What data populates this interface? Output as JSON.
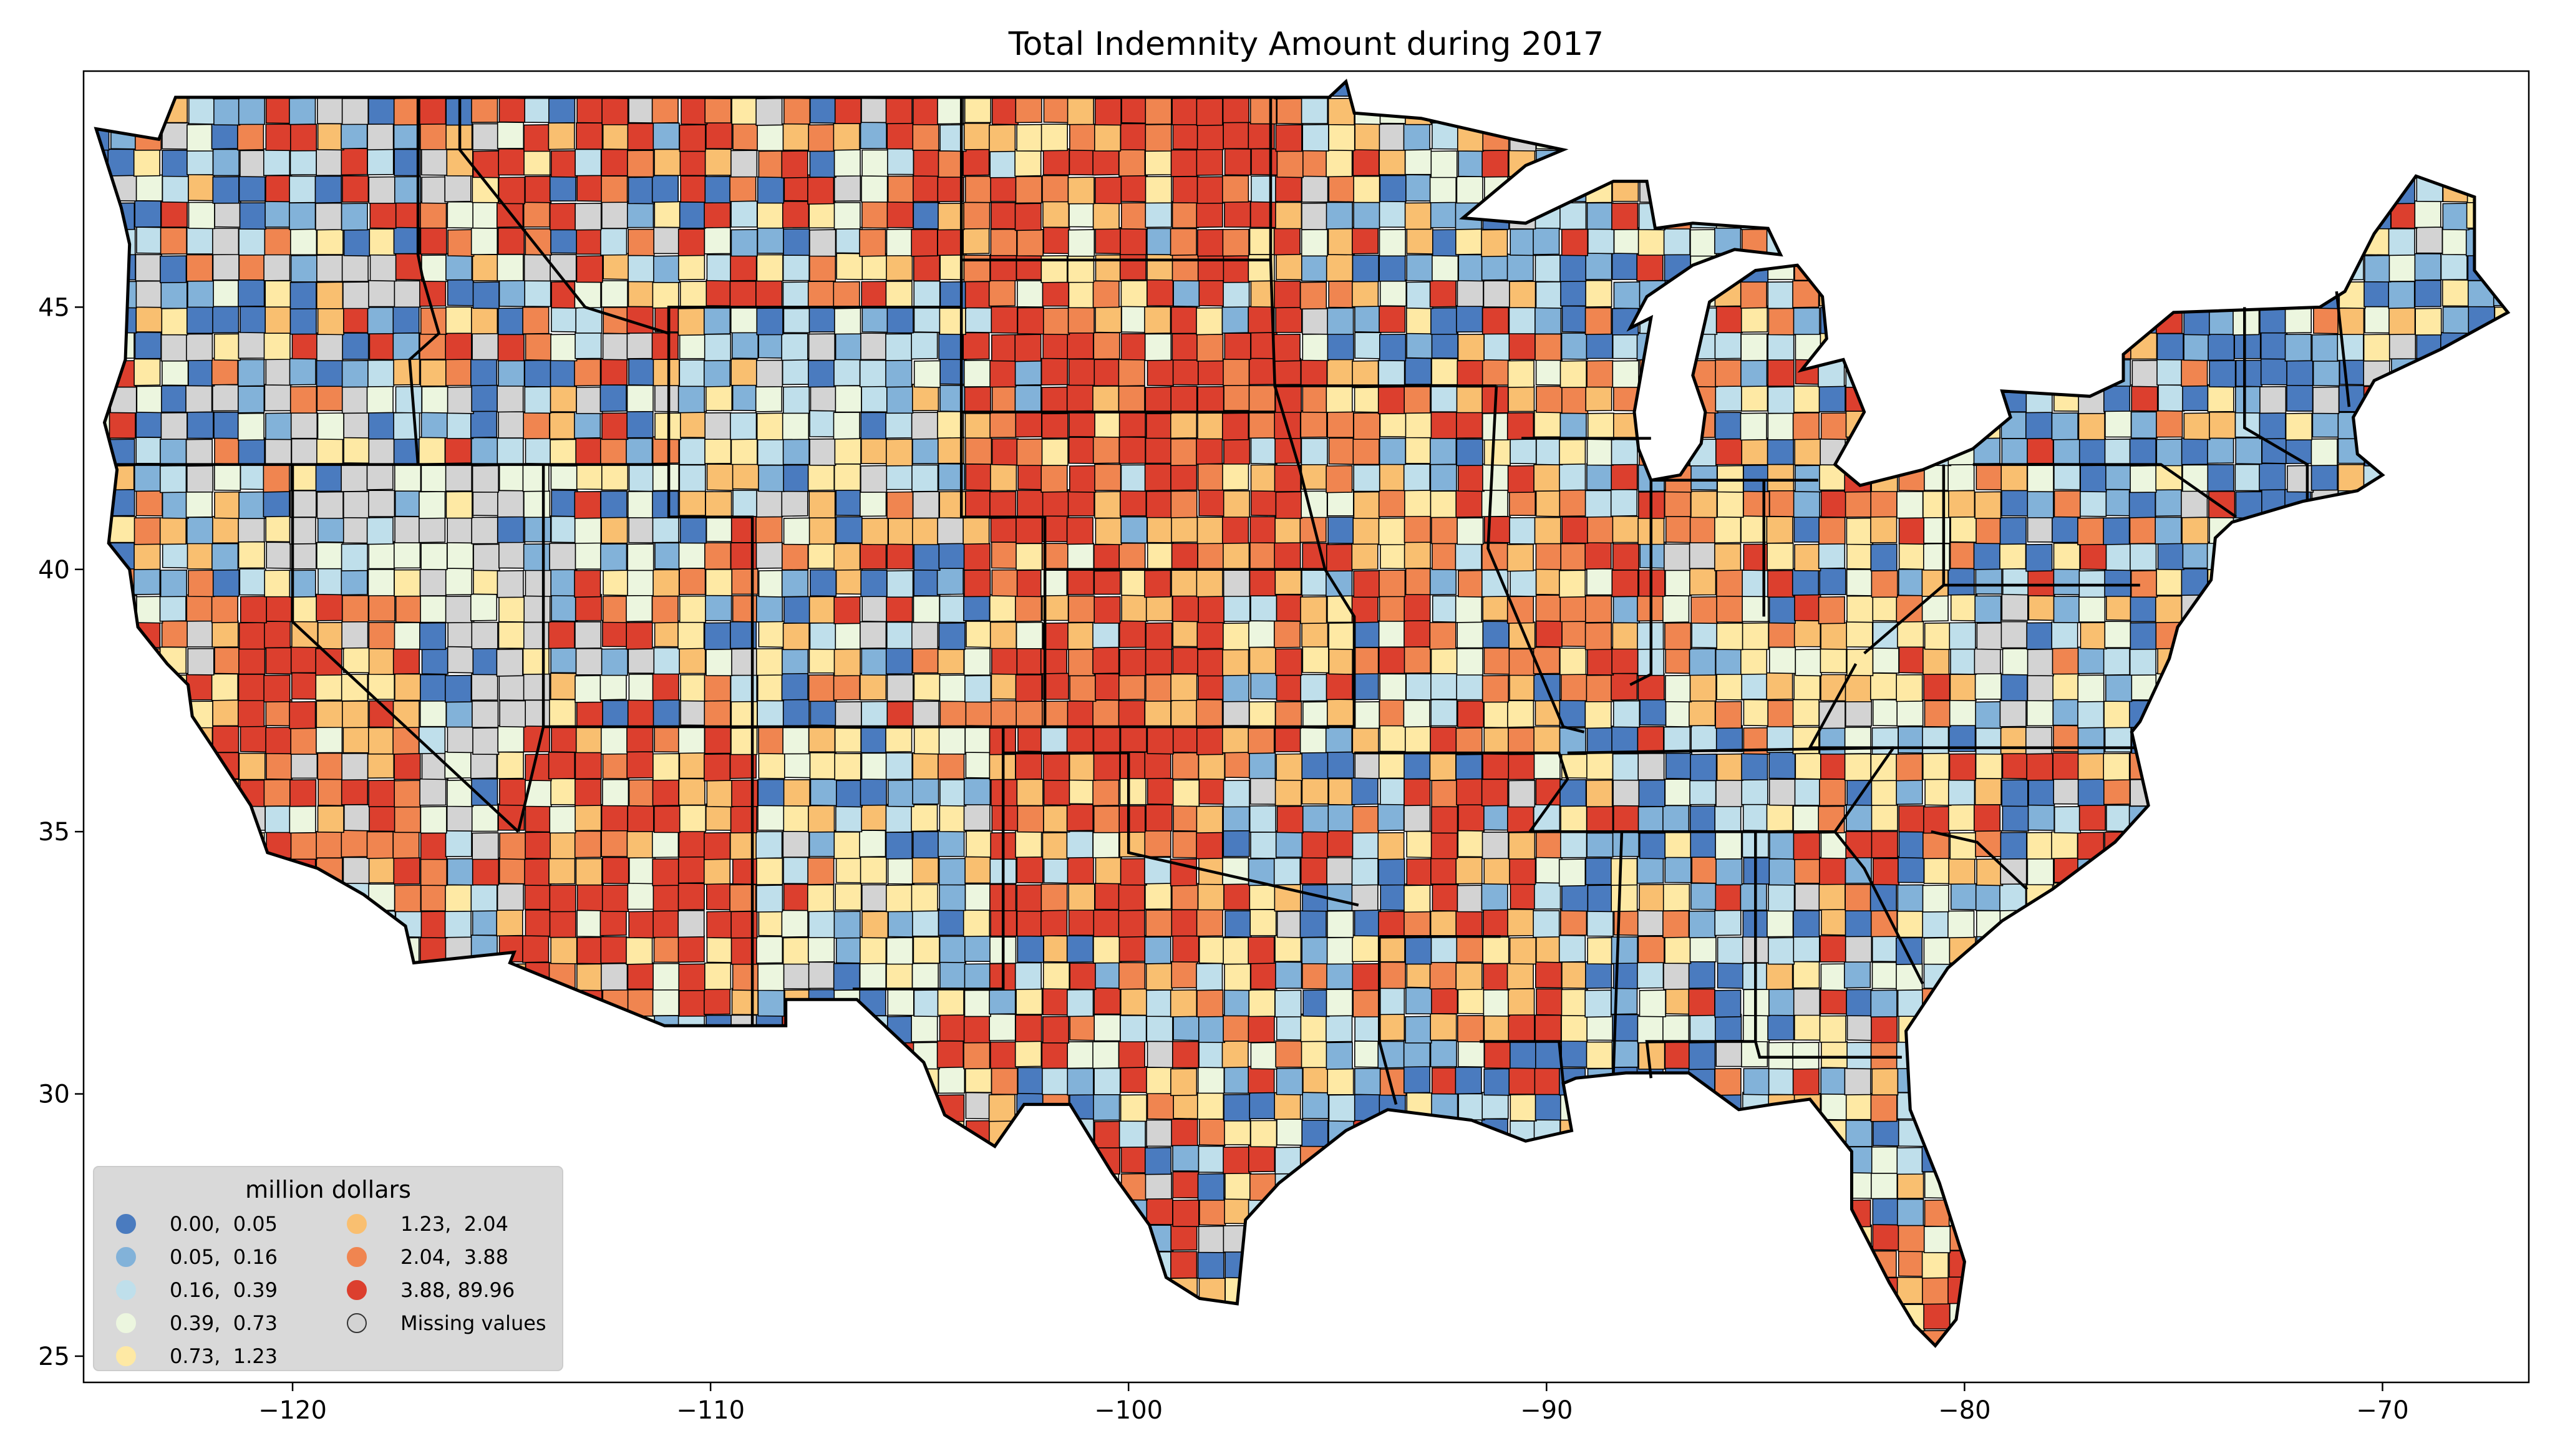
{
  "chart_data": {
    "type": "choropleth",
    "title": "Total Indemnity Amount during 2017",
    "xlabel": "",
    "ylabel": "",
    "xlim": [
      -125.0,
      -66.5
    ],
    "ylim": [
      24.5,
      49.5
    ],
    "x_ticks": [
      -120,
      -110,
      -100,
      -90,
      -80,
      -70
    ],
    "x_tick_labels": [
      "−120",
      "−110",
      "−100",
      "−90",
      "−80",
      "−70"
    ],
    "y_ticks": [
      25,
      30,
      35,
      40,
      45
    ],
    "y_tick_labels": [
      "25",
      "30",
      "35",
      "40",
      "45"
    ],
    "grid": false,
    "legend": {
      "title": "million dollars",
      "placement": "lower-left",
      "entries": [
        {
          "label": "0.00,  0.05",
          "color": "#4a7bbf"
        },
        {
          "label": "0.05,  0.16",
          "color": "#82b2d9"
        },
        {
          "label": "0.16,  0.39",
          "color": "#bfdfeb"
        },
        {
          "label": "0.39,  0.73",
          "color": "#ecf6df"
        },
        {
          "label": "0.73,  1.23",
          "color": "#fee9a4"
        },
        {
          "label": "1.23,  2.04",
          "color": "#f9bf70"
        },
        {
          "label": "2.04,  3.88",
          "color": "#f08550"
        },
        {
          "label": "3.88, 89.96",
          "color": "#dc3f2e"
        },
        {
          "label": "Missing values",
          "color": "#d3d3d3"
        }
      ]
    }
  }
}
